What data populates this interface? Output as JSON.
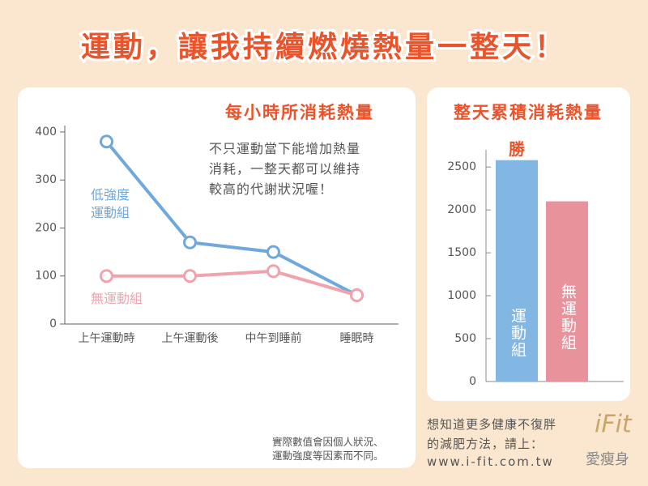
{
  "title": "運動，讓我持續燃燒熱量一整天！",
  "chart_data": [
    {
      "type": "line",
      "title": "每小時所消耗熱量",
      "annotation": [
        "不只運動當下能增加熱量",
        "消耗，一整天都可以維持",
        "較高的代謝狀況喔！"
      ],
      "categories": [
        "上午運動時",
        "上午運動後",
        "中午到睡前",
        "睡眠時"
      ],
      "series": [
        {
          "name": "低強度運動組",
          "color": "#6ea8dc",
          "values": [
            380,
            170,
            150,
            60
          ]
        },
        {
          "name": "無運動組",
          "color": "#f0a3ac",
          "values": [
            100,
            100,
            110,
            60
          ]
        }
      ],
      "ylim": [
        0,
        410
      ],
      "yticks": [
        0,
        100,
        200,
        300,
        400
      ],
      "footnote": [
        "實際數值會因個人狀況、",
        "運動強度等因素而不同。"
      ]
    },
    {
      "type": "bar",
      "title": "整天累積消耗熱量",
      "categories": [
        "運動組",
        "無運動組"
      ],
      "values": [
        2580,
        2100
      ],
      "colors": [
        "#82b6e3",
        "#e8939c"
      ],
      "annotation": "勝",
      "ylim": [
        0,
        2700
      ],
      "yticks": [
        0,
        500,
        1000,
        1500,
        2000,
        2500
      ]
    }
  ],
  "footer": {
    "lines": [
      "想知道更多健康不復胖",
      "的減肥方法，請上：",
      "www.i-fit.com.tw"
    ],
    "logo": "iFit",
    "logo_sub": "愛瘦身"
  }
}
